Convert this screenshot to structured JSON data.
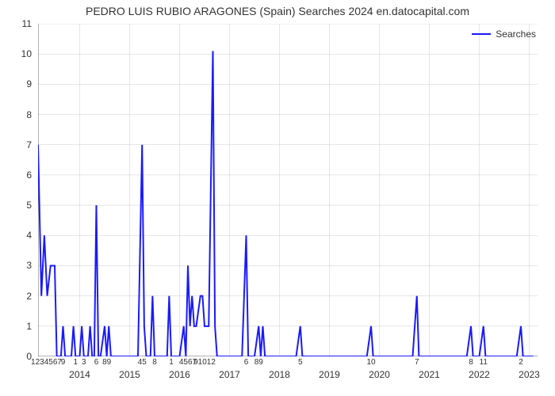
{
  "chart": {
    "type": "line",
    "title": "PEDRO LUIS RUBIO ARAGONES (Spain) Searches 2024 en.datocapital.com",
    "title_fontsize": 14,
    "title_color": "#333333",
    "background_color": "#ffffff",
    "plot_bg": "#ffffff",
    "grid_color": "#cccccc",
    "grid_width": 0.5,
    "line_color": "#1a1aff",
    "line_width": 2,
    "ylim": [
      0,
      11
    ],
    "ytick_step": 1,
    "yticks": [
      0,
      1,
      2,
      3,
      4,
      5,
      6,
      7,
      8,
      9,
      10,
      11
    ],
    "xlim": [
      0,
      120
    ],
    "x_years": [
      {
        "label": "2014",
        "x": 10
      },
      {
        "label": "2015",
        "x": 22
      },
      {
        "label": "2016",
        "x": 34
      },
      {
        "label": "2017",
        "x": 46
      },
      {
        "label": "2018",
        "x": 58
      },
      {
        "label": "2019",
        "x": 70
      },
      {
        "label": "2020",
        "x": 82
      },
      {
        "label": "2021",
        "x": 94
      },
      {
        "label": "2022",
        "x": 106
      },
      {
        "label": "2023",
        "x": 118
      }
    ],
    "x_ticks": [
      {
        "label": "1234567",
        "x": 2
      },
      {
        "label": "9",
        "x": 6
      },
      {
        "label": "1",
        "x": 9
      },
      {
        "label": "3",
        "x": 11
      },
      {
        "label": "6",
        "x": 14
      },
      {
        "label": "89",
        "x": 16.5
      },
      {
        "label": "45",
        "x": 25
      },
      {
        "label": "8",
        "x": 28
      },
      {
        "label": "1",
        "x": 32
      },
      {
        "label": "4567",
        "x": 36
      },
      {
        "label": "91012",
        "x": 40
      },
      {
        "label": "6",
        "x": 50
      },
      {
        "label": "89",
        "x": 53
      },
      {
        "label": "5",
        "x": 63
      },
      {
        "label": "10",
        "x": 80
      },
      {
        "label": "7",
        "x": 91
      },
      {
        "label": "8",
        "x": 104
      },
      {
        "label": "11",
        "x": 107
      },
      {
        "label": "2",
        "x": 116
      }
    ],
    "legend_label": "Searches",
    "series": [
      {
        "x": 0,
        "y": 7
      },
      {
        "x": 0.8,
        "y": 2
      },
      {
        "x": 1.5,
        "y": 4
      },
      {
        "x": 2.2,
        "y": 2
      },
      {
        "x": 3,
        "y": 3
      },
      {
        "x": 4,
        "y": 3
      },
      {
        "x": 4.5,
        "y": 0
      },
      {
        "x": 5.5,
        "y": 0
      },
      {
        "x": 6,
        "y": 1
      },
      {
        "x": 6.5,
        "y": 0
      },
      {
        "x": 8,
        "y": 0
      },
      {
        "x": 8.5,
        "y": 1
      },
      {
        "x": 9,
        "y": 0
      },
      {
        "x": 10,
        "y": 0
      },
      {
        "x": 10.5,
        "y": 1
      },
      {
        "x": 11,
        "y": 0
      },
      {
        "x": 12,
        "y": 0
      },
      {
        "x": 12.5,
        "y": 1
      },
      {
        "x": 13,
        "y": 0
      },
      {
        "x": 13.5,
        "y": 0
      },
      {
        "x": 14,
        "y": 5
      },
      {
        "x": 14.5,
        "y": 0
      },
      {
        "x": 15,
        "y": 0
      },
      {
        "x": 16,
        "y": 1
      },
      {
        "x": 16.5,
        "y": 0
      },
      {
        "x": 17,
        "y": 1
      },
      {
        "x": 17.5,
        "y": 0
      },
      {
        "x": 22,
        "y": 0
      },
      {
        "x": 24,
        "y": 0
      },
      {
        "x": 25,
        "y": 7
      },
      {
        "x": 25.5,
        "y": 1
      },
      {
        "x": 26,
        "y": 0
      },
      {
        "x": 27,
        "y": 0
      },
      {
        "x": 27.5,
        "y": 2
      },
      {
        "x": 28,
        "y": 0
      },
      {
        "x": 30,
        "y": 0
      },
      {
        "x": 31,
        "y": 0
      },
      {
        "x": 31.5,
        "y": 2
      },
      {
        "x": 32,
        "y": 0
      },
      {
        "x": 34,
        "y": 0
      },
      {
        "x": 35,
        "y": 1
      },
      {
        "x": 35.5,
        "y": 0
      },
      {
        "x": 36,
        "y": 3
      },
      {
        "x": 36.5,
        "y": 1
      },
      {
        "x": 37,
        "y": 2
      },
      {
        "x": 37.5,
        "y": 1
      },
      {
        "x": 38,
        "y": 1
      },
      {
        "x": 39,
        "y": 2
      },
      {
        "x": 39.5,
        "y": 2
      },
      {
        "x": 40,
        "y": 1
      },
      {
        "x": 41,
        "y": 1
      },
      {
        "x": 42,
        "y": 10.1
      },
      {
        "x": 42.5,
        "y": 1
      },
      {
        "x": 43,
        "y": 0
      },
      {
        "x": 46,
        "y": 0
      },
      {
        "x": 48,
        "y": 0
      },
      {
        "x": 49,
        "y": 0
      },
      {
        "x": 50,
        "y": 4
      },
      {
        "x": 50.5,
        "y": 0
      },
      {
        "x": 52,
        "y": 0
      },
      {
        "x": 53,
        "y": 1
      },
      {
        "x": 53.5,
        "y": 0
      },
      {
        "x": 54,
        "y": 1
      },
      {
        "x": 54.5,
        "y": 0
      },
      {
        "x": 60,
        "y": 0
      },
      {
        "x": 62,
        "y": 0
      },
      {
        "x": 63,
        "y": 1
      },
      {
        "x": 63.5,
        "y": 0
      },
      {
        "x": 75,
        "y": 0
      },
      {
        "x": 79,
        "y": 0
      },
      {
        "x": 80,
        "y": 1
      },
      {
        "x": 80.5,
        "y": 0
      },
      {
        "x": 88,
        "y": 0
      },
      {
        "x": 90,
        "y": 0
      },
      {
        "x": 91,
        "y": 2
      },
      {
        "x": 91.5,
        "y": 0
      },
      {
        "x": 100,
        "y": 0
      },
      {
        "x": 103,
        "y": 0
      },
      {
        "x": 104,
        "y": 1
      },
      {
        "x": 104.5,
        "y": 0
      },
      {
        "x": 106,
        "y": 0
      },
      {
        "x": 107,
        "y": 1
      },
      {
        "x": 107.5,
        "y": 0
      },
      {
        "x": 113,
        "y": 0
      },
      {
        "x": 115,
        "y": 0
      },
      {
        "x": 116,
        "y": 1
      },
      {
        "x": 116.5,
        "y": 0
      },
      {
        "x": 119,
        "y": 0
      }
    ]
  }
}
